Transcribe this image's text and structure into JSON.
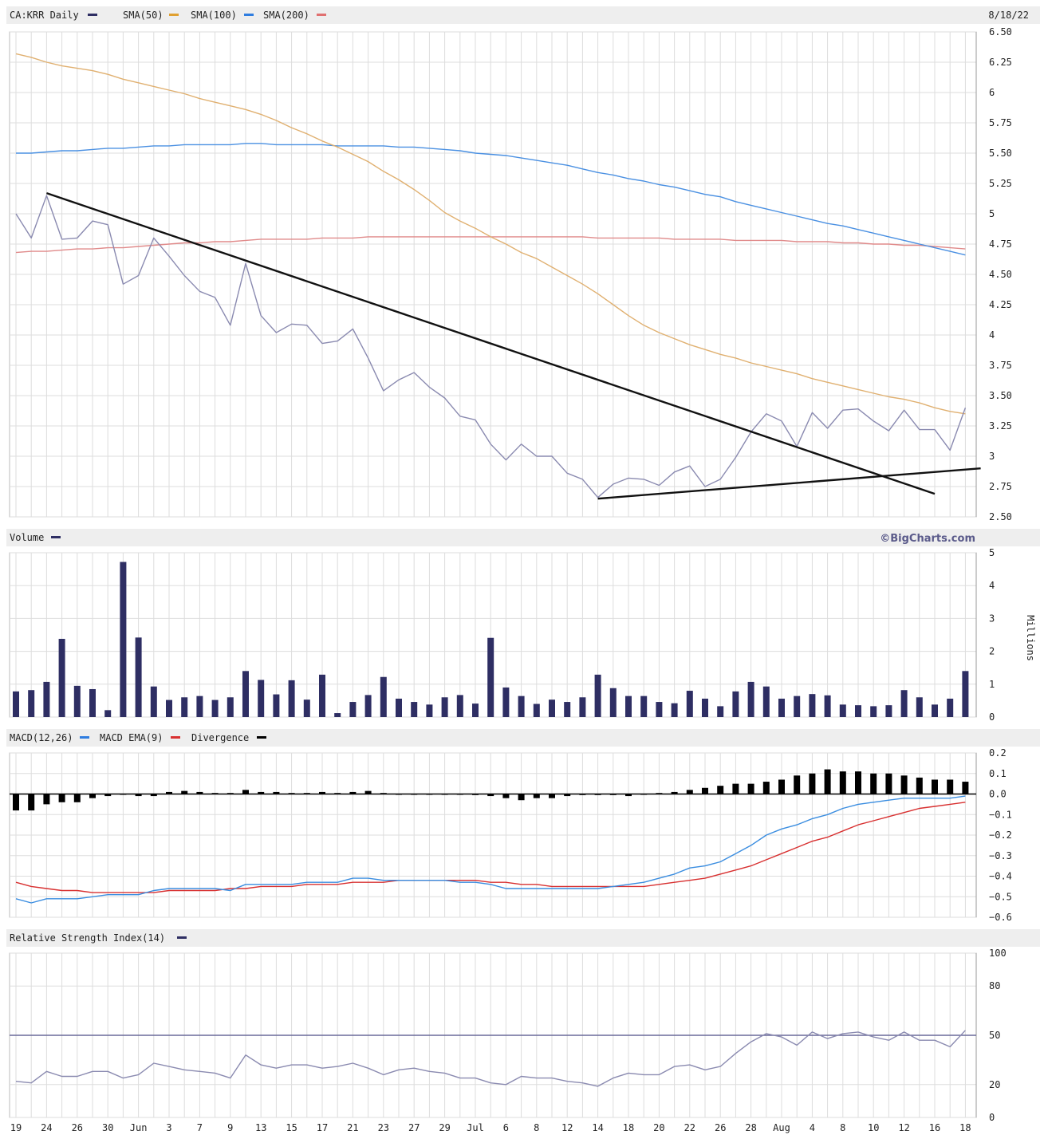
{
  "chart_data": [
    {
      "panel": "price",
      "type": "line",
      "title": "CA:KRR Daily",
      "date_label": "8/18/22",
      "ylim": [
        2.5,
        6.5
      ],
      "yticks": [
        6.5,
        6.25,
        6.0,
        5.75,
        5.5,
        5.25,
        5.0,
        4.75,
        4.5,
        4.25,
        4.0,
        3.75,
        3.5,
        3.25,
        3.0,
        2.75,
        2.5
      ],
      "grid": true,
      "legend": [
        "CA:KRR Daily",
        "SMA(50)",
        "SMA(100)",
        "SMA(200)"
      ],
      "series": [
        {
          "name": "CA:KRR Daily",
          "color": "#8a8ab0",
          "values": [
            5.0,
            4.8,
            5.15,
            4.79,
            4.8,
            4.94,
            4.91,
            4.42,
            4.49,
            4.8,
            4.65,
            4.49,
            4.36,
            4.31,
            4.08,
            4.59,
            4.16,
            4.02,
            4.09,
            4.08,
            3.93,
            3.95,
            4.05,
            3.81,
            3.54,
            3.63,
            3.69,
            3.57,
            3.48,
            3.33,
            3.3,
            3.1,
            2.97,
            3.1,
            3.0,
            3.0,
            2.86,
            2.81,
            2.66,
            2.77,
            2.82,
            2.81,
            2.76,
            2.87,
            2.92,
            2.75,
            2.81,
            2.99,
            3.2,
            3.35,
            3.29,
            3.08,
            3.36,
            3.23,
            3.38,
            3.39,
            3.29,
            3.21,
            3.38,
            3.22,
            3.22,
            3.05,
            3.4
          ]
        },
        {
          "name": "SMA(50)",
          "color": "#e0b070",
          "values": [
            6.32,
            6.29,
            6.25,
            6.22,
            6.2,
            6.18,
            6.15,
            6.11,
            6.08,
            6.05,
            6.02,
            5.99,
            5.95,
            5.92,
            5.89,
            5.86,
            5.82,
            5.77,
            5.71,
            5.66,
            5.6,
            5.55,
            5.49,
            5.43,
            5.35,
            5.28,
            5.2,
            5.11,
            5.01,
            4.94,
            4.88,
            4.81,
            4.75,
            4.68,
            4.63,
            4.56,
            4.49,
            4.42,
            4.34,
            4.25,
            4.16,
            4.08,
            4.02,
            3.97,
            3.92,
            3.88,
            3.84,
            3.81,
            3.77,
            3.74,
            3.71,
            3.68,
            3.64,
            3.61,
            3.58,
            3.55,
            3.52,
            3.49,
            3.47,
            3.44,
            3.4,
            3.37,
            3.35
          ]
        },
        {
          "name": "SMA(100)",
          "color": "#4a90e2",
          "values": [
            5.5,
            5.5,
            5.51,
            5.52,
            5.52,
            5.53,
            5.54,
            5.54,
            5.55,
            5.56,
            5.56,
            5.57,
            5.57,
            5.57,
            5.57,
            5.58,
            5.58,
            5.57,
            5.57,
            5.57,
            5.57,
            5.56,
            5.56,
            5.56,
            5.56,
            5.55,
            5.55,
            5.54,
            5.53,
            5.52,
            5.5,
            5.49,
            5.48,
            5.46,
            5.44,
            5.42,
            5.4,
            5.37,
            5.34,
            5.32,
            5.29,
            5.27,
            5.24,
            5.22,
            5.19,
            5.16,
            5.14,
            5.1,
            5.07,
            5.04,
            5.01,
            4.98,
            4.95,
            4.92,
            4.9,
            4.87,
            4.84,
            4.81,
            4.78,
            4.75,
            4.72,
            4.69,
            4.66
          ]
        },
        {
          "name": "SMA(200)",
          "color": "#e08a8a",
          "values": [
            4.68,
            4.69,
            4.69,
            4.7,
            4.71,
            4.71,
            4.72,
            4.72,
            4.73,
            4.74,
            4.75,
            4.76,
            4.76,
            4.77,
            4.77,
            4.78,
            4.79,
            4.79,
            4.79,
            4.79,
            4.8,
            4.8,
            4.8,
            4.81,
            4.81,
            4.81,
            4.81,
            4.81,
            4.81,
            4.81,
            4.81,
            4.81,
            4.81,
            4.81,
            4.81,
            4.81,
            4.81,
            4.81,
            4.8,
            4.8,
            4.8,
            4.8,
            4.8,
            4.79,
            4.79,
            4.79,
            4.79,
            4.78,
            4.78,
            4.78,
            4.78,
            4.77,
            4.77,
            4.77,
            4.76,
            4.76,
            4.75,
            4.75,
            4.74,
            4.74,
            4.73,
            4.72,
            4.71
          ]
        }
      ],
      "annotations": [
        {
          "type": "trendline",
          "color": "#111111",
          "from": {
            "day": 2,
            "value": 5.17
          },
          "to": {
            "day": 60,
            "value": 2.69
          }
        },
        {
          "type": "trendline",
          "color": "#111111",
          "from": {
            "day": 38,
            "value": 2.65
          },
          "to": {
            "day": 63,
            "value": 2.9
          }
        }
      ]
    },
    {
      "panel": "volume",
      "type": "bar",
      "title": "Volume",
      "brand": "©BigCharts.com",
      "ylabel": "Millions",
      "ylim": [
        0,
        5
      ],
      "yticks": [
        5,
        4,
        3,
        2,
        1,
        0
      ],
      "grid": true,
      "series": [
        {
          "name": "Volume",
          "color": "#2e2e63",
          "values": [
            0.78,
            0.82,
            1.07,
            2.38,
            0.95,
            0.85,
            0.21,
            4.72,
            2.42,
            0.93,
            0.52,
            0.6,
            0.64,
            0.52,
            0.6,
            1.4,
            1.13,
            0.69,
            1.12,
            0.53,
            1.29,
            0.12,
            0.46,
            0.67,
            1.22,
            0.56,
            0.46,
            0.38,
            0.6,
            0.67,
            0.41,
            2.41,
            0.9,
            0.64,
            0.4,
            0.53,
            0.46,
            0.6,
            1.29,
            0.88,
            0.64,
            0.64,
            0.46,
            0.42,
            0.8,
            0.56,
            0.33,
            0.78,
            1.07,
            0.93,
            0.56,
            0.64,
            0.7,
            0.66,
            0.38,
            0.36,
            0.33,
            0.36,
            0.82,
            0.6,
            0.38,
            0.56,
            1.4
          ]
        }
      ]
    },
    {
      "panel": "macd",
      "type": "line",
      "title": "MACD(12,26)",
      "ylim": [
        -0.6,
        0.2
      ],
      "yticks": [
        0.2,
        0.1,
        0.0,
        -0.1,
        -0.2,
        -0.3,
        -0.4,
        -0.5,
        -0.6
      ],
      "ytick_labels": [
        "0.2",
        "0.1",
        "0.0",
        "−0.1",
        "−0.2",
        "−0.3",
        "−0.4",
        "−0.5",
        "−0.6"
      ],
      "grid": true,
      "legend": [
        "MACD(12,26)",
        "MACD EMA(9)",
        "Divergence"
      ],
      "series": [
        {
          "name": "MACD(12,26)",
          "color": "#3a8de0",
          "values": [
            -0.51,
            -0.53,
            -0.51,
            -0.51,
            -0.51,
            -0.5,
            -0.49,
            -0.49,
            -0.49,
            -0.47,
            -0.46,
            -0.46,
            -0.46,
            -0.46,
            -0.47,
            -0.44,
            -0.44,
            -0.44,
            -0.44,
            -0.43,
            -0.43,
            -0.43,
            -0.41,
            -0.41,
            -0.42,
            -0.42,
            -0.42,
            -0.42,
            -0.42,
            -0.43,
            -0.43,
            -0.44,
            -0.46,
            -0.46,
            -0.46,
            -0.46,
            -0.46,
            -0.46,
            -0.46,
            -0.45,
            -0.44,
            -0.43,
            -0.41,
            -0.39,
            -0.36,
            -0.35,
            -0.33,
            -0.29,
            -0.25,
            -0.2,
            -0.17,
            -0.15,
            -0.12,
            -0.1,
            -0.07,
            -0.05,
            -0.04,
            -0.03,
            -0.02,
            -0.02,
            -0.02,
            -0.02,
            -0.01
          ]
        },
        {
          "name": "MACD EMA(9)",
          "color": "#d83030",
          "values": [
            -0.43,
            -0.45,
            -0.46,
            -0.47,
            -0.47,
            -0.48,
            -0.48,
            -0.48,
            -0.48,
            -0.48,
            -0.47,
            -0.47,
            -0.47,
            -0.47,
            -0.46,
            -0.46,
            -0.45,
            -0.45,
            -0.45,
            -0.44,
            -0.44,
            -0.44,
            -0.43,
            -0.43,
            -0.43,
            -0.42,
            -0.42,
            -0.42,
            -0.42,
            -0.42,
            -0.42,
            -0.43,
            -0.43,
            -0.44,
            -0.44,
            -0.45,
            -0.45,
            -0.45,
            -0.45,
            -0.45,
            -0.45,
            -0.45,
            -0.44,
            -0.43,
            -0.42,
            -0.41,
            -0.39,
            -0.37,
            -0.35,
            -0.32,
            -0.29,
            -0.26,
            -0.23,
            -0.21,
            -0.18,
            -0.15,
            -0.13,
            -0.11,
            -0.09,
            -0.07,
            -0.06,
            -0.05,
            -0.04
          ]
        },
        {
          "name": "Divergence",
          "color": "#000000",
          "values": [
            -0.08,
            -0.08,
            -0.05,
            -0.04,
            -0.04,
            -0.02,
            -0.01,
            0.0,
            -0.01,
            -0.01,
            0.01,
            0.015,
            0.01,
            0.005,
            0.005,
            0.02,
            0.01,
            0.01,
            0.005,
            0.005,
            0.01,
            0.005,
            0.01,
            0.015,
            0.005,
            0.0,
            0.0,
            0.0,
            0.0,
            0.0,
            -0.005,
            -0.01,
            -0.02,
            -0.03,
            -0.02,
            -0.02,
            -0.01,
            -0.005,
            -0.005,
            -0.005,
            -0.01,
            0.0,
            0.005,
            0.01,
            0.02,
            0.03,
            0.04,
            0.05,
            0.05,
            0.06,
            0.07,
            0.09,
            0.1,
            0.12,
            0.11,
            0.11,
            0.1,
            0.1,
            0.09,
            0.08,
            0.07,
            0.07,
            0.06
          ]
        }
      ]
    },
    {
      "panel": "rsi",
      "type": "line",
      "title": "Relative Strength Index(14)",
      "ylim": [
        0,
        100
      ],
      "yticks": [
        100,
        80,
        50,
        20,
        0
      ],
      "grid": true,
      "reference_line": 50,
      "series": [
        {
          "name": "Relative Strength Index(14)",
          "color": "#8a8ab0",
          "values": [
            22,
            21,
            28,
            25,
            25,
            28,
            28,
            24,
            26,
            33,
            31,
            29,
            28,
            27,
            24,
            38,
            32,
            30,
            32,
            32,
            30,
            31,
            33,
            30,
            26,
            29,
            30,
            28,
            27,
            24,
            24,
            21,
            20,
            25,
            24,
            24,
            22,
            21,
            19,
            24,
            27,
            26,
            26,
            31,
            32,
            29,
            31,
            39,
            46,
            51,
            49,
            44,
            52,
            48,
            51,
            52,
            49,
            47,
            52,
            47,
            47,
            43,
            53
          ]
        }
      ]
    }
  ],
  "x_axis": {
    "labels": [
      {
        "day": 0,
        "label": "19"
      },
      {
        "day": 2,
        "label": "24"
      },
      {
        "day": 4,
        "label": "26"
      },
      {
        "day": 6,
        "label": "30"
      },
      {
        "day": 8,
        "label": "Jun"
      },
      {
        "day": 10,
        "label": "3"
      },
      {
        "day": 12,
        "label": "7"
      },
      {
        "day": 14,
        "label": "9"
      },
      {
        "day": 16,
        "label": "13"
      },
      {
        "day": 18,
        "label": "15"
      },
      {
        "day": 20,
        "label": "17"
      },
      {
        "day": 22,
        "label": "21"
      },
      {
        "day": 24,
        "label": "23"
      },
      {
        "day": 26,
        "label": "27"
      },
      {
        "day": 28,
        "label": "29"
      },
      {
        "day": 30,
        "label": "Jul"
      },
      {
        "day": 32,
        "label": "6"
      },
      {
        "day": 34,
        "label": "8"
      },
      {
        "day": 36,
        "label": "12"
      },
      {
        "day": 38,
        "label": "14"
      },
      {
        "day": 40,
        "label": "18"
      },
      {
        "day": 42,
        "label": "20"
      },
      {
        "day": 44,
        "label": "22"
      },
      {
        "day": 46,
        "label": "26"
      },
      {
        "day": 48,
        "label": "28"
      },
      {
        "day": 50,
        "label": "Aug"
      },
      {
        "day": 52,
        "label": "4"
      },
      {
        "day": 54,
        "label": "8"
      },
      {
        "day": 56,
        "label": "10"
      },
      {
        "day": 58,
        "label": "12"
      },
      {
        "day": 60,
        "label": "16"
      },
      {
        "day": 62,
        "label": "18"
      }
    ]
  }
}
